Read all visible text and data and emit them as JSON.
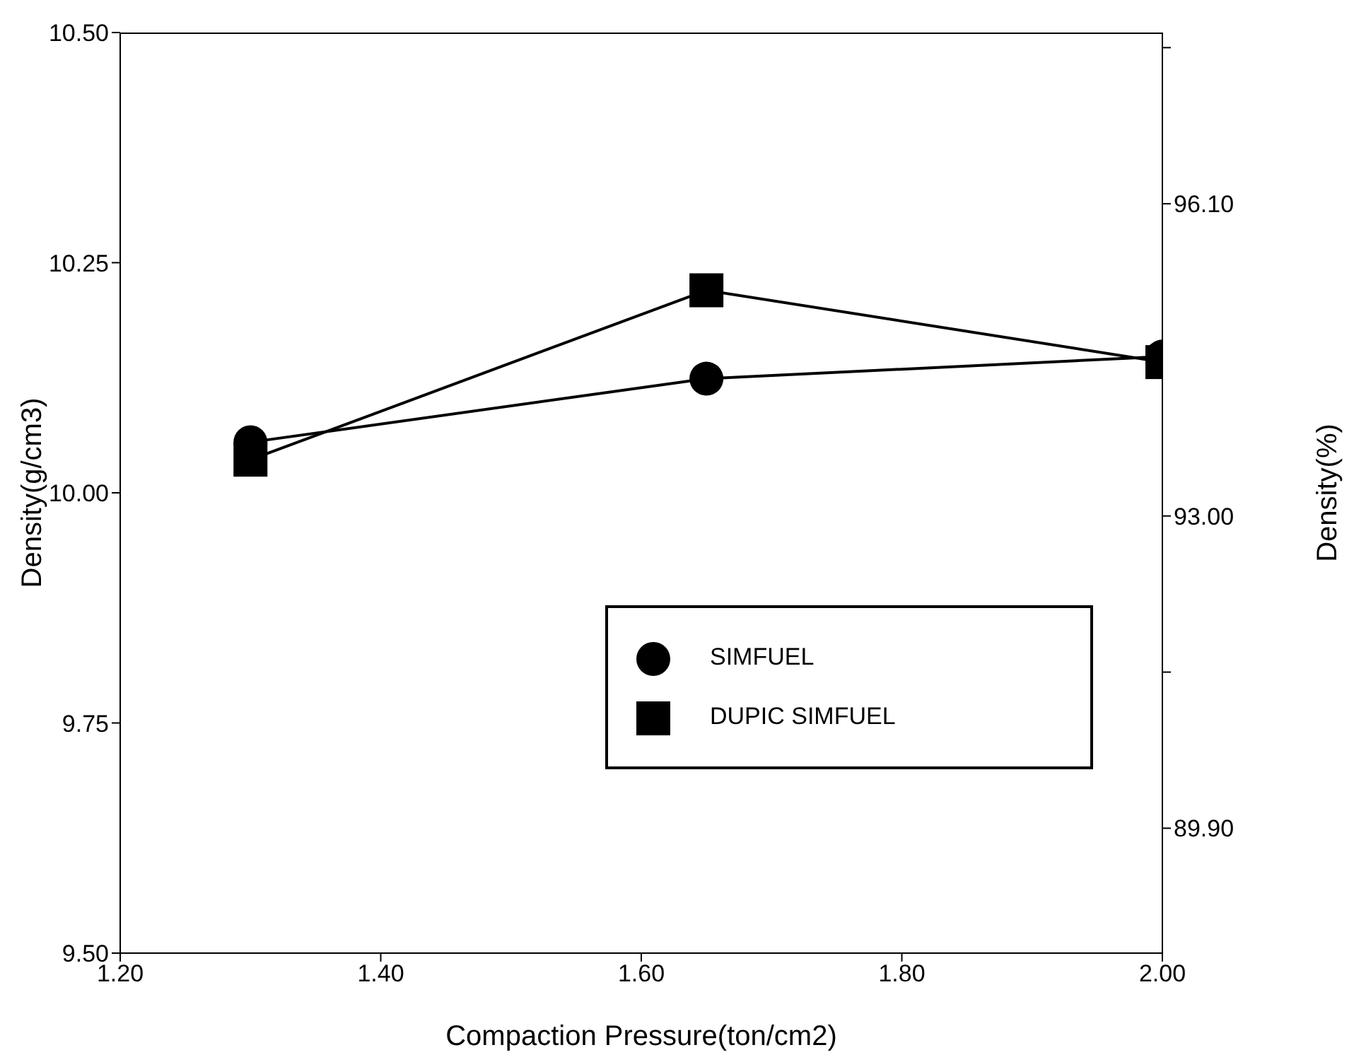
{
  "chart_data": {
    "type": "line",
    "xlabel": "Compaction Pressure(ton/cm2)",
    "ylabel": "Density(g/cm3)",
    "y2label": "Density(%)",
    "x": [
      1.3,
      1.65,
      2.0
    ],
    "series": [
      {
        "name": "SIMFUEL",
        "color": "#000000",
        "marker": "circle",
        "values": [
          10.055,
          10.124,
          10.148
        ]
      },
      {
        "name": "DUPIC SIMFUEL",
        "color": "#000000",
        "marker": "square",
        "values": [
          10.036,
          10.22,
          10.142
        ]
      }
    ],
    "xlim": [
      1.2,
      2.0
    ],
    "xticks": [
      {
        "value": 1.2,
        "label": "1.20"
      },
      {
        "value": 1.4,
        "label": "1.40"
      },
      {
        "value": 1.6,
        "label": "1.60"
      },
      {
        "value": 1.8,
        "label": "1.80"
      },
      {
        "value": 2.0,
        "label": "2.00"
      }
    ],
    "ylim": [
      9.5,
      10.5
    ],
    "yticks": [
      {
        "value": 9.5,
        "label": "9.50"
      },
      {
        "value": 9.75,
        "label": "9.75"
      },
      {
        "value": 10.0,
        "label": "10.00"
      },
      {
        "value": 10.25,
        "label": "10.25"
      },
      {
        "value": 10.5,
        "label": "10.50"
      }
    ],
    "y2lim": [
      88.66,
      97.8
    ],
    "y2ticks": [
      {
        "value": 89.9,
        "label": "89.90"
      },
      {
        "value": 91.45,
        "label": null
      },
      {
        "value": 93.0,
        "label": "93.00"
      },
      {
        "value": 96.1,
        "label": "96.10"
      },
      {
        "value": 97.65,
        "label": null
      }
    ],
    "legend": "bottom right",
    "grid": false,
    "line_style": "solid"
  }
}
